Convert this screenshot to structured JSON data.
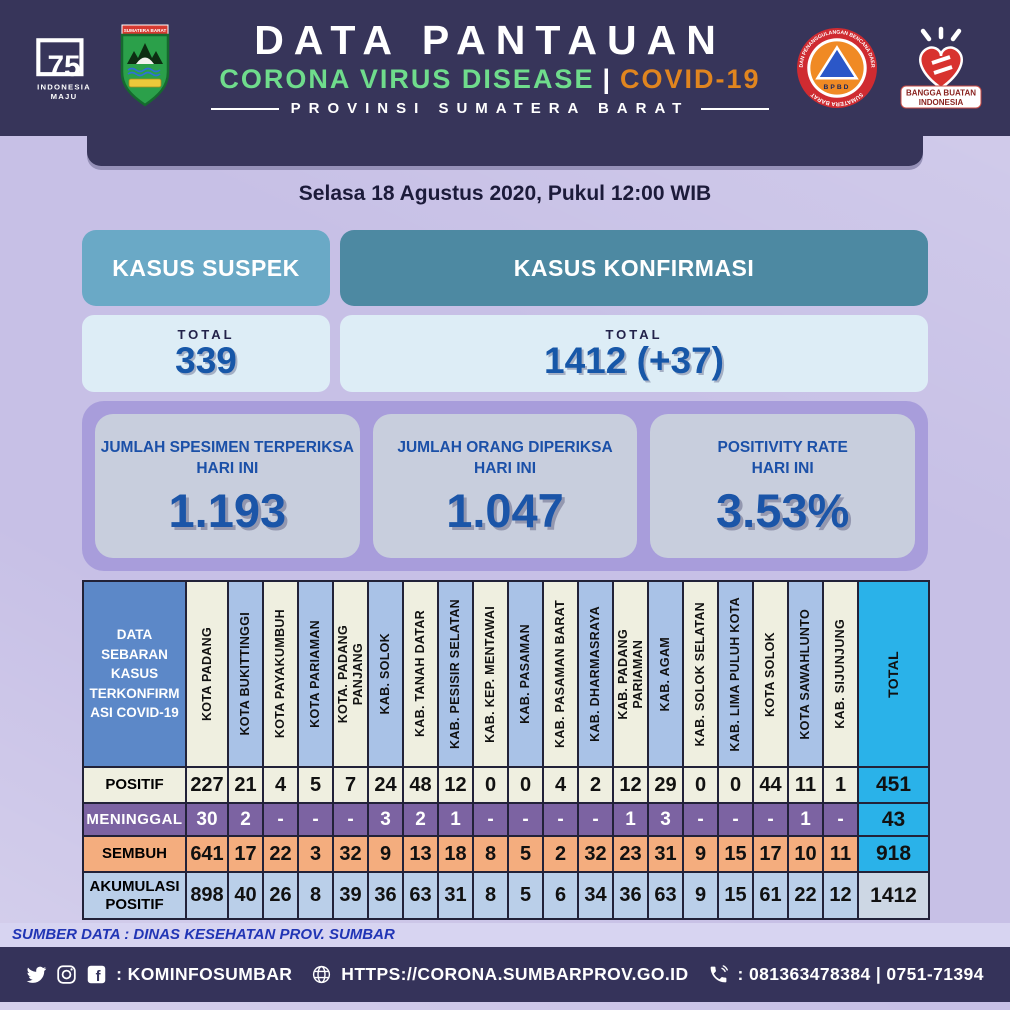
{
  "header": {
    "title": "DATA PANTAUAN",
    "subtitle": {
      "green": "CORONA VIRUS DISEASE",
      "divider": "|",
      "orange": "COVID-19"
    },
    "region_line": "PROVINSI SUMATERA BARAT",
    "logos": {
      "independence_75": {
        "number": "75",
        "caption_line1": "INDONESIA",
        "caption_line2": "MAJU"
      },
      "sumbar_crest": {
        "banner": "SUMATERA BARAT"
      },
      "bpbd": {
        "ring_top": "BADAN PENANGGULANGAN BENCANA DAERAH",
        "ring_bottom": "SUMATERA BARAT",
        "abbr": "BPBD"
      },
      "bangga_buatan": {
        "caption_line1": "BANGGA BUATAN",
        "caption_line2": "INDONESIA"
      }
    }
  },
  "date_line": "Selasa 18 Agustus 2020, Pukul 12:00 WIB",
  "suspek": {
    "title": "KASUS SUSPEK",
    "total_label": "TOTAL",
    "total_value": "339"
  },
  "konfirmasi": {
    "title": "KASUS KONFIRMASI",
    "total_label": "TOTAL",
    "total_value": "1412 (+37)"
  },
  "stats": [
    {
      "line1": "JUMLAH SPESIMEN TERPERIKSA",
      "line2": "HARI INI",
      "value": "1.193"
    },
    {
      "line1": "JUMLAH ORANG DIPERIKSA",
      "line2": "HARI INI",
      "value": "1.047"
    },
    {
      "line1": "POSITIVITY RATE",
      "line2": "HARI INI",
      "value": "3.53%"
    }
  ],
  "table": {
    "corner_label": "DATA\nSEBARAN\nKASUS\nTERKONFIRM\nASI COVID-19",
    "total_header": "TOTAL",
    "columns": [
      "KOTA PADANG",
      "KOTA BUKITTINGGI",
      "KOTA PAYAKUMBUH",
      "KOTA PARIAMAN",
      "KOTA. PADANG\nPANJANG",
      "KAB. SOLOK",
      "KAB. TANAH DATAR",
      "KAB. PESISIR SELATAN",
      "KAB. KEP. MENTAWAI",
      "KAB. PASAMAN",
      "KAB. PASAMAN BARAT",
      "KAB. DHARMASRAYA",
      "KAB. PADANG\nPARIAMAN",
      "KAB. AGAM",
      "KAB. SOLOK SELATAN",
      "KAB. LIMA PULUH KOTA",
      "KOTA SOLOK",
      "KOTA SAWAHLUNTO",
      "KAB. SIJUNJUNG"
    ],
    "rows": [
      {
        "label": "POSITIF",
        "values": [
          "227",
          "21",
          "4",
          "5",
          "7",
          "24",
          "48",
          "12",
          "0",
          "0",
          "4",
          "2",
          "12",
          "29",
          "0",
          "0",
          "44",
          "11",
          "1"
        ],
        "total": "451"
      },
      {
        "label": "MENINGGAL",
        "values": [
          "30",
          "2",
          "-",
          "-",
          "-",
          "3",
          "2",
          "1",
          "-",
          "-",
          "-",
          "-",
          "1",
          "3",
          "-",
          "-",
          "-",
          "1",
          "-"
        ],
        "total": "43"
      },
      {
        "label": "SEMBUH",
        "values": [
          "641",
          "17",
          "22",
          "3",
          "32",
          "9",
          "13",
          "18",
          "8",
          "5",
          "2",
          "32",
          "23",
          "31",
          "9",
          "15",
          "17",
          "10",
          "11"
        ],
        "total": "918"
      },
      {
        "label": "AKUMULASI POSITIF",
        "values": [
          "898",
          "40",
          "26",
          "8",
          "39",
          "36",
          "63",
          "31",
          "8",
          "5",
          "6",
          "34",
          "36",
          "63",
          "9",
          "15",
          "61",
          "22",
          "12"
        ],
        "total": "1412"
      }
    ]
  },
  "chart_data": {
    "type": "table",
    "title": "DATA SEBARAN KASUS TERKONFIRMASI COVID-19",
    "categories": [
      "KOTA PADANG",
      "KOTA BUKITTINGGI",
      "KOTA PAYAKUMBUH",
      "KOTA PARIAMAN",
      "KOTA. PADANG PANJANG",
      "KAB. SOLOK",
      "KAB. TANAH DATAR",
      "KAB. PESISIR SELATAN",
      "KAB. KEP. MENTAWAI",
      "KAB. PASAMAN",
      "KAB. PASAMAN BARAT",
      "KAB. DHARMASRAYA",
      "KAB. PADANG PARIAMAN",
      "KAB. AGAM",
      "KAB. SOLOK SELATAN",
      "KAB. LIMA PULUH KOTA",
      "KOTA SOLOK",
      "KOTA SAWAHLUNTO",
      "KAB. SIJUNJUNG"
    ],
    "series": [
      {
        "name": "POSITIF",
        "values": [
          227,
          21,
          4,
          5,
          7,
          24,
          48,
          12,
          0,
          0,
          4,
          2,
          12,
          29,
          0,
          0,
          44,
          11,
          1
        ],
        "total": 451
      },
      {
        "name": "MENINGGAL",
        "values": [
          30,
          2,
          null,
          null,
          null,
          3,
          2,
          1,
          null,
          null,
          null,
          null,
          1,
          3,
          null,
          null,
          null,
          1,
          null
        ],
        "total": 43
      },
      {
        "name": "SEMBUH",
        "values": [
          641,
          17,
          22,
          3,
          32,
          9,
          13,
          18,
          8,
          5,
          2,
          32,
          23,
          31,
          9,
          15,
          17,
          10,
          11
        ],
        "total": 918
      },
      {
        "name": "AKUMULASI POSITIF",
        "values": [
          898,
          40,
          26,
          8,
          39,
          36,
          63,
          31,
          8,
          5,
          6,
          34,
          36,
          63,
          9,
          15,
          61,
          22,
          12
        ],
        "total": 1412
      }
    ],
    "summary": {
      "kasus_suspek_total": 339,
      "kasus_konfirmasi_total": 1412,
      "kasus_konfirmasi_new": 37,
      "spesimen_terperiksa_hari_ini": 1193,
      "orang_diperiksa_hari_ini": 1047,
      "positivity_rate_hari_ini": "3.53%"
    }
  },
  "source_line": "SUMBER DATA : DINAS KESEHATAN PROV. SUMBAR",
  "footer": {
    "social_handle": ": KOMINFOSUMBAR",
    "website": "HTTPS://CORONA.SUMBARPROV.GO.ID",
    "phones": ": 081363478384 | 0751-71394"
  },
  "colors": {
    "header_navy": "#37355a",
    "page_lavender": "#c7c0e6",
    "title_green": "#6fdc8c",
    "title_orange": "#e0851f",
    "pill_suspek": "#6aa9c6",
    "pill_konfirmasi": "#4d89a2",
    "stat_panel_purple": "#a89ddb",
    "stat_number_blue": "#1b55a8",
    "row_meninggal_purple": "#7c63a2",
    "row_sembuh_orange": "#f4ad7e",
    "row_akumulasi_blue": "#bacfe9",
    "total_cyan": "#2ab2e9"
  }
}
